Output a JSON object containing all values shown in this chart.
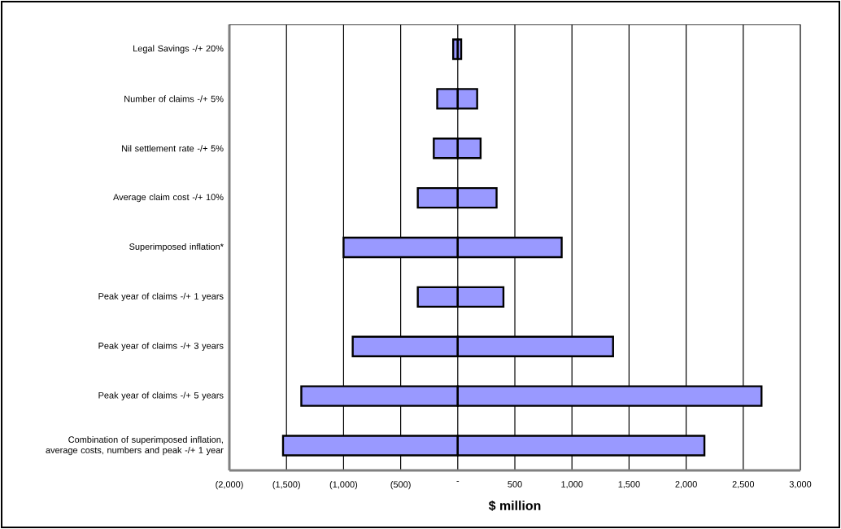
{
  "chart_data": {
    "type": "bar",
    "orientation": "horizontal",
    "stacked": true,
    "xlabel": "$ million",
    "grid": "x",
    "categories": [
      "Legal Savings -/+ 20%",
      "Number of claims -/+ 5%",
      "Nil settlement rate -/+ 5%",
      "Average claim cost -/+ 10%",
      "Superimposed inflation*",
      "Peak year of claims -/+ 1 years",
      "Peak year of claims -/+ 3 years",
      "Peak year of claims -/+ 5 years",
      "Combination of superimposed inflation, average costs, numbers and peak -/+ 1 year"
    ],
    "series": [
      {
        "color": "#9999ff",
        "values": [
          -40,
          -180,
          -210,
          -350,
          -1000,
          -350,
          -920,
          -1370,
          -1530
        ]
      },
      {
        "color": "#9999ff",
        "values": [
          30,
          170,
          200,
          340,
          910,
          400,
          1360,
          2660,
          2160
        ]
      }
    ],
    "xlim": [
      -2000,
      3000
    ],
    "xticks": [
      {
        "value": -2000,
        "label": "(2,000)"
      },
      {
        "value": -1500,
        "label": "(1,500)"
      },
      {
        "value": -1000,
        "label": "(1,000)"
      },
      {
        "value": -500,
        "label": "(500)"
      },
      {
        "value": 0,
        "label": "-"
      },
      500,
      {
        "value": 1000,
        "label": "1,000"
      },
      {
        "value": 1500,
        "label": "1,500"
      },
      {
        "value": 2000,
        "label": "2,000"
      },
      {
        "value": 2500,
        "label": "2,500"
      },
      {
        "value": 3000,
        "label": "3,000"
      }
    ]
  }
}
